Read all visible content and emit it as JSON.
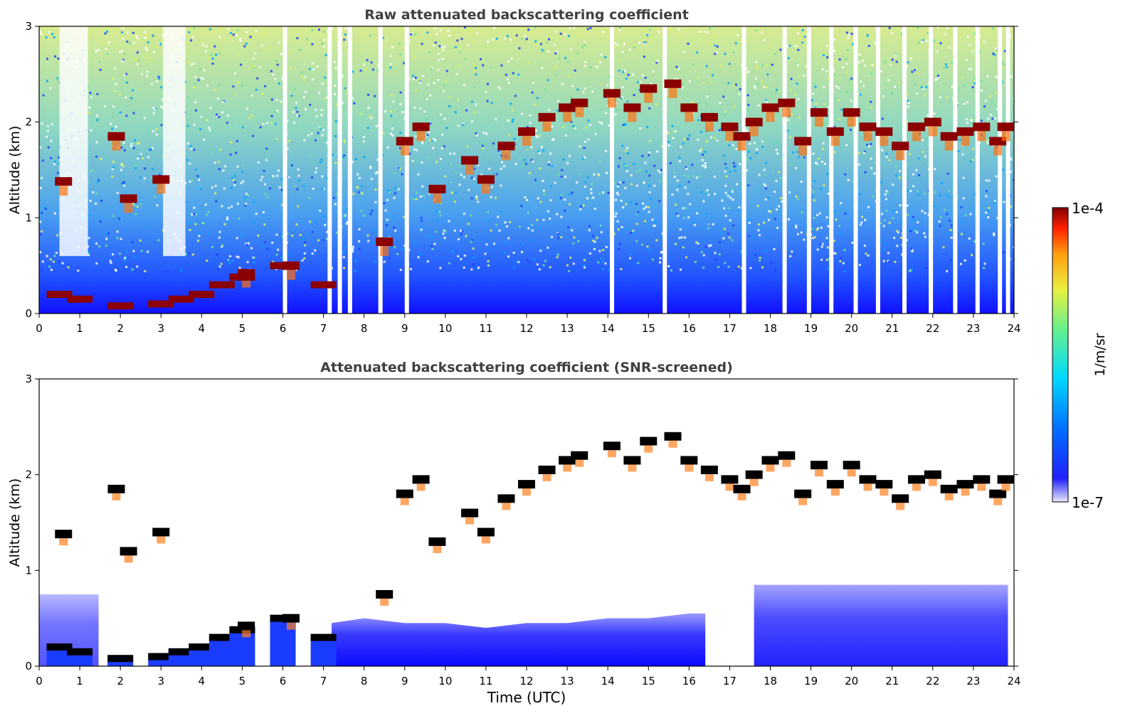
{
  "chart_data": [
    {
      "type": "heatmap",
      "title": "Raw attenuated backscattering coefficient",
      "ylabel": "Altitude (km)",
      "xlabel": "",
      "xlim": [
        0,
        24
      ],
      "ylim": [
        0,
        3
      ],
      "x_ticks": [
        "0",
        "1",
        "2",
        "3",
        "4",
        "5",
        "6",
        "7",
        "8",
        "9",
        "10",
        "11",
        "12",
        "13",
        "14",
        "15",
        "16",
        "17",
        "18",
        "19",
        "20",
        "21",
        "22",
        "23",
        "24"
      ],
      "y_ticks": [
        "0",
        "1",
        "2",
        "3"
      ],
      "cloud_layer_altitude_km": [
        [
          0.6,
          1.38
        ],
        [
          1.9,
          1.85
        ],
        [
          2.2,
          1.2
        ],
        [
          3.0,
          1.4
        ],
        [
          5.1,
          0.42
        ],
        [
          6.2,
          0.5
        ],
        [
          8.5,
          0.75
        ],
        [
          9.0,
          1.8
        ],
        [
          9.4,
          1.95
        ],
        [
          9.8,
          1.3
        ],
        [
          10.6,
          1.6
        ],
        [
          11.0,
          1.4
        ],
        [
          11.5,
          1.75
        ],
        [
          12.0,
          1.9
        ],
        [
          12.5,
          2.05
        ],
        [
          13.0,
          2.15
        ],
        [
          13.3,
          2.2
        ],
        [
          14.1,
          2.3
        ],
        [
          14.6,
          2.15
        ],
        [
          15.0,
          2.35
        ],
        [
          15.6,
          2.4
        ],
        [
          16.0,
          2.15
        ],
        [
          16.5,
          2.05
        ],
        [
          17.0,
          1.95
        ],
        [
          17.3,
          1.85
        ],
        [
          17.6,
          2.0
        ],
        [
          18.0,
          2.15
        ],
        [
          18.4,
          2.2
        ],
        [
          18.8,
          1.8
        ],
        [
          19.2,
          2.1
        ],
        [
          19.6,
          1.9
        ],
        [
          20.0,
          2.1
        ],
        [
          20.4,
          1.95
        ],
        [
          20.8,
          1.9
        ],
        [
          21.2,
          1.75
        ],
        [
          21.6,
          1.95
        ],
        [
          22.0,
          2.0
        ],
        [
          22.4,
          1.85
        ],
        [
          22.8,
          1.9
        ],
        [
          23.2,
          1.95
        ],
        [
          23.6,
          1.8
        ],
        [
          23.8,
          1.95
        ]
      ],
      "boundary_layer_altitude_km": [
        [
          0.5,
          0.2
        ],
        [
          1.0,
          0.15
        ],
        [
          2.0,
          0.08
        ],
        [
          3.0,
          0.1
        ],
        [
          3.5,
          0.15
        ],
        [
          4.0,
          0.2
        ],
        [
          4.5,
          0.3
        ],
        [
          5.0,
          0.38
        ],
        [
          6.0,
          0.5
        ],
        [
          7.0,
          0.3
        ]
      ]
    },
    {
      "type": "heatmap",
      "title": "Attenuated backscattering coefficient (SNR-screened)",
      "ylabel": "Altitude (km)",
      "xlabel": "Time (UTC)",
      "xlim": [
        0,
        24
      ],
      "ylim": [
        0,
        3
      ],
      "x_ticks": [
        "0",
        "1",
        "2",
        "3",
        "4",
        "5",
        "6",
        "7",
        "8",
        "9",
        "10",
        "11",
        "12",
        "13",
        "14",
        "15",
        "16",
        "17",
        "18",
        "19",
        "20",
        "21",
        "22",
        "23",
        "24"
      ],
      "y_ticks": [
        "0",
        "1",
        "2",
        "3"
      ],
      "noise_layer_top_km": [
        [
          7.2,
          0.45
        ],
        [
          8.0,
          0.5
        ],
        [
          9.0,
          0.45
        ],
        [
          10.0,
          0.45
        ],
        [
          11.0,
          0.4
        ],
        [
          12.0,
          0.45
        ],
        [
          13.0,
          0.45
        ],
        [
          14.0,
          0.5
        ],
        [
          15.0,
          0.5
        ],
        [
          16.0,
          0.55
        ],
        [
          16.4,
          0.55
        ]
      ]
    }
  ],
  "colorbar": {
    "label": "1/m/sr",
    "max_label": "1e-4",
    "min_label": "1e-7",
    "scale": "log",
    "colormap": [
      "#e8e8f6",
      "#2020ff",
      "#0080ff",
      "#00d8ff",
      "#60f090",
      "#e8f040",
      "#ffa010",
      "#ff2000",
      "#800000"
    ]
  }
}
